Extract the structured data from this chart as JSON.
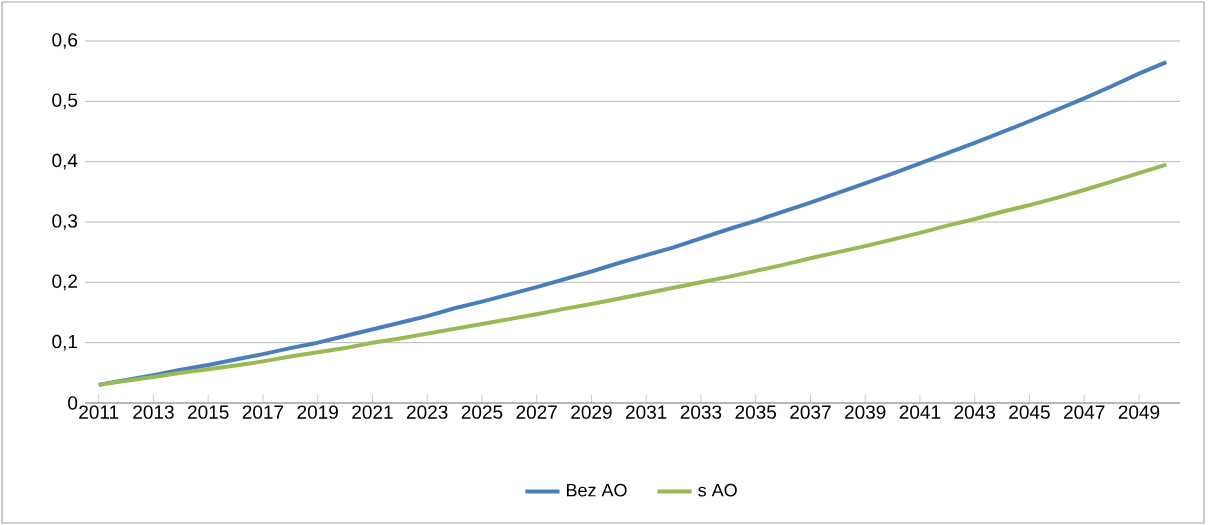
{
  "chart_data": {
    "type": "line",
    "categories": [
      "2011",
      null,
      "2013",
      null,
      "2015",
      null,
      "2017",
      null,
      "2019",
      null,
      "2021",
      null,
      "2023",
      null,
      "2025",
      null,
      "2027",
      null,
      "2029",
      null,
      "2031",
      null,
      "2033",
      null,
      "2035",
      null,
      "2037",
      null,
      "2039",
      null,
      "2041",
      null,
      "2043",
      null,
      "2045",
      null,
      "2047",
      null,
      "2049",
      null
    ],
    "series": [
      {
        "name": "Bez AO",
        "color": "#4a7ebb",
        "values": [
          0.03,
          0.038,
          0.046,
          0.055,
          0.063,
          0.072,
          0.081,
          0.091,
          0.1,
          0.111,
          0.122,
          0.133,
          0.144,
          0.157,
          0.168,
          0.18,
          0.192,
          0.205,
          0.218,
          0.232,
          0.245,
          0.258,
          0.273,
          0.288,
          0.302,
          0.317,
          0.332,
          0.348,
          0.364,
          0.38,
          0.397,
          0.414,
          0.431,
          0.449,
          0.467,
          0.486,
          0.505,
          0.525,
          0.546,
          0.565
        ]
      },
      {
        "name": "s AO",
        "color": "#98b954",
        "values": [
          0.03,
          0.037,
          0.043,
          0.05,
          0.056,
          0.062,
          0.069,
          0.077,
          0.084,
          0.091,
          0.1,
          0.107,
          0.115,
          0.123,
          0.131,
          0.139,
          0.147,
          0.156,
          0.164,
          0.173,
          0.182,
          0.191,
          0.2,
          0.209,
          0.219,
          0.229,
          0.24,
          0.25,
          0.26,
          0.271,
          0.282,
          0.294,
          0.305,
          0.317,
          0.328,
          0.34,
          0.353,
          0.367,
          0.381,
          0.395
        ]
      }
    ],
    "ylim": [
      0,
      0.6
    ],
    "yticks": [
      0,
      {
        "value": 0.1,
        "label": "0,1"
      },
      {
        "value": 0.2,
        "label": "0,2"
      },
      {
        "value": 0.3,
        "label": "0,3"
      },
      {
        "value": 0.4,
        "label": "0,4"
      },
      {
        "value": 0.5,
        "label": "0,5"
      },
      {
        "value": 0.6,
        "label": "0,6"
      }
    ],
    "grid": "y",
    "legend": "bottom",
    "marker": "none",
    "line_style": "solid"
  }
}
